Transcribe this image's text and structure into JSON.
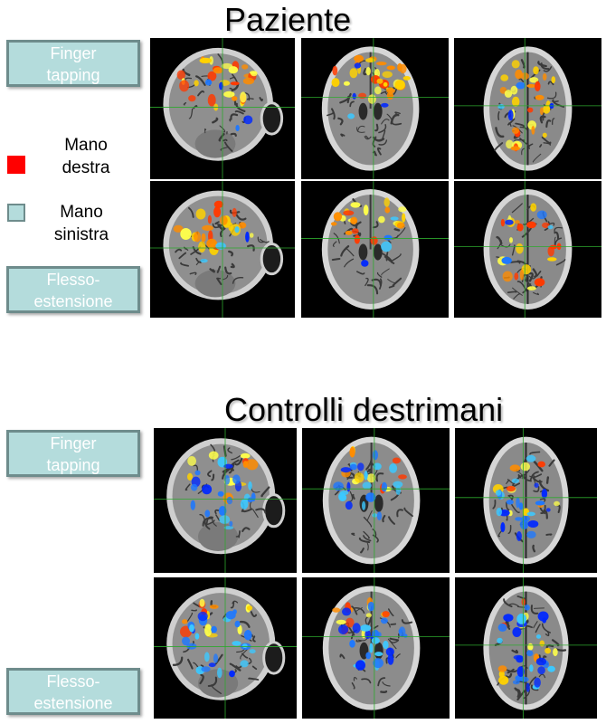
{
  "figure": {
    "top": {
      "title": "Paziente"
    },
    "bottom": {
      "title": "Controlli destrimani"
    }
  },
  "tasks": {
    "finger_tapping": {
      "line1": "Finger",
      "line2": "tapping"
    },
    "flesso_estensione": {
      "line1": "Flesso-",
      "line2": "estensione"
    }
  },
  "legend": {
    "right_hand": {
      "line1": "Mano",
      "line2": "destra",
      "color": "#ff0000"
    },
    "left_hand": {
      "line1": "Mano",
      "line2": "sinistra",
      "color": "#b4dcdc"
    }
  },
  "colors": {
    "activation_warm": [
      "#ff3a00",
      "#ff8c00",
      "#ffd200",
      "#ffff4a"
    ],
    "activation_cool": [
      "#0028ff",
      "#1e78ff",
      "#3cc8ff"
    ],
    "crosshair": "#2ea82e",
    "panel_background": "#000000"
  }
}
